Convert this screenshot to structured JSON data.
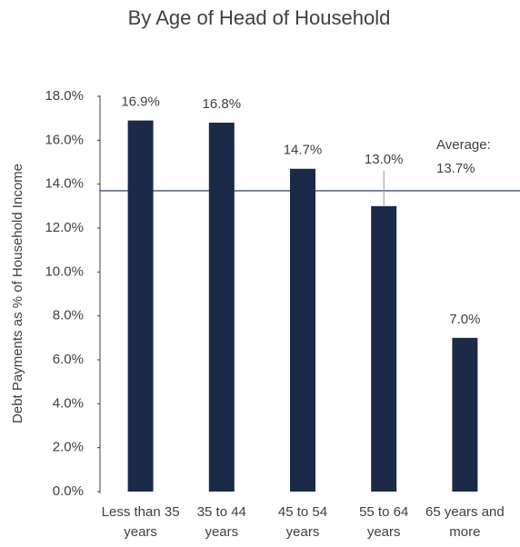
{
  "chart_data": {
    "type": "bar",
    "title": "By Age of Head of Household",
    "y_label": "Debt Payments as % of Household Income",
    "categories": [
      "Less than 35 years",
      "35 to 44 years",
      "45 to 54 years",
      "55 to 64 years",
      "65 years and more"
    ],
    "values": [
      16.9,
      16.8,
      14.7,
      13.0,
      7.0
    ],
    "value_labels": [
      "16.9%",
      "16.8%",
      "14.7%",
      "13.0%",
      "7.0%"
    ],
    "color": "#1c2a4a",
    "ylim": [
      0,
      18
    ],
    "yticks": [
      {
        "value": 0,
        "label": "0.0%"
      },
      {
        "value": 2,
        "label": "2.0%"
      },
      {
        "value": 4,
        "label": "4.0%"
      },
      {
        "value": 6,
        "label": "6.0%"
      },
      {
        "value": 8,
        "label": "8.0%"
      },
      {
        "value": 10,
        "label": "10.0%"
      },
      {
        "value": 12,
        "label": "12.0%"
      },
      {
        "value": 14,
        "label": "14.0%"
      },
      {
        "value": 16,
        "label": "16.0%"
      },
      {
        "value": 18,
        "label": "18.0%"
      }
    ],
    "average": {
      "label": "Average:",
      "value": 13.7,
      "value_label": "13.7%"
    }
  }
}
